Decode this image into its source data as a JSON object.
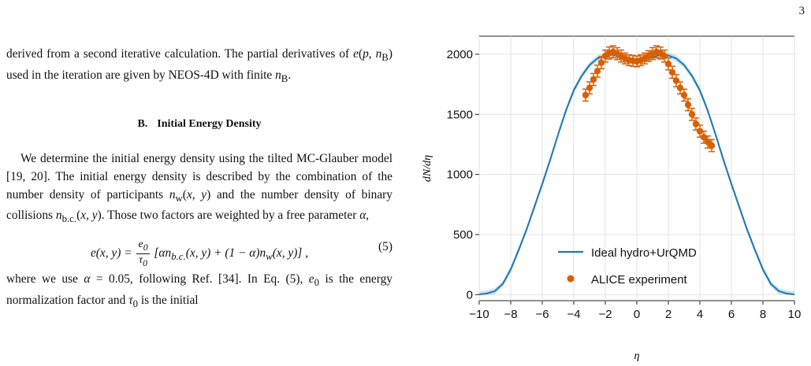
{
  "page_number": "3",
  "left_column": {
    "para1": "derived from a second iterative calculation. The partial derivatives of e(p, nB) used in the iteration are given by NEOS-4D with finite nB.",
    "section_number": "B.",
    "section_title": "Initial Energy Density",
    "para2": "We determine the initial energy density using the tilted MC-Glauber model [19, 20]. The initial energy density is described by the combination of the number density of participants nw(x, y) and the number density of binary collisions nb.c.(x, y). Those two factors are weighted by a free parameter α,",
    "equation_text": "e(x, y) = e0/τ0 [α nb.c.(x, y) + (1 − α) nw(x, y)],",
    "equation_number": "(5)",
    "para3": "where we use α = 0.05, following Ref. [34]. In Eq. (5), e0 is the energy normalization factor and τ0 is the initial"
  },
  "chart_data": {
    "type": "line",
    "xlabel": "η",
    "ylabel": "dN/dη",
    "xlim": [
      -10,
      10
    ],
    "ylim": [
      -50,
      2150
    ],
    "xticks": [
      -10,
      -8,
      -6,
      -4,
      -2,
      0,
      2,
      4,
      6,
      8,
      10
    ],
    "xtick_labels": [
      "−10",
      "−8",
      "−6",
      "−4",
      "−2",
      "0",
      "2",
      "4",
      "6",
      "8",
      "10"
    ],
    "yticks": [
      0,
      500,
      1000,
      1500,
      2000
    ],
    "ytick_labels": [
      "0",
      "500",
      "1000",
      "1500",
      "2000"
    ],
    "grid": true,
    "legend_position": "bottom-center",
    "series": [
      {
        "name": "Ideal hydro+UrQMD",
        "kind": "line",
        "color": "#1f77b4",
        "x": [
          -10,
          -9.5,
          -9,
          -8.5,
          -8,
          -7.5,
          -7,
          -6.5,
          -6,
          -5.5,
          -5,
          -4.5,
          -4,
          -3.5,
          -3,
          -2.5,
          -2,
          -1.5,
          -1,
          -0.5,
          0,
          0.5,
          1,
          1.5,
          2,
          2.5,
          3,
          3.5,
          4,
          4.5,
          5,
          5.5,
          6,
          6.5,
          7,
          7.5,
          8,
          8.5,
          9,
          9.5,
          10
        ],
        "y": [
          2,
          10,
          30,
          90,
          210,
          370,
          540,
          730,
          920,
          1120,
          1330,
          1530,
          1700,
          1820,
          1910,
          1965,
          1990,
          1995,
          1975,
          1955,
          1945,
          1955,
          1975,
          1995,
          1990,
          1965,
          1910,
          1820,
          1700,
          1530,
          1330,
          1120,
          920,
          730,
          540,
          370,
          210,
          90,
          30,
          10,
          2
        ]
      },
      {
        "name": "ALICE experiment",
        "kind": "scatter",
        "color": "#d95f02",
        "x": [
          -3.25,
          -3.0,
          -2.75,
          -2.5,
          -2.25,
          -2.0,
          -1.75,
          -1.5,
          -1.25,
          -1.0,
          -0.75,
          -0.5,
          -0.25,
          0.0,
          0.25,
          0.5,
          0.75,
          1.0,
          1.25,
          1.5,
          1.75,
          2.0,
          2.25,
          2.5,
          2.75,
          3.0,
          3.25,
          3.5,
          3.75,
          4.0,
          4.25,
          4.5,
          4.75
        ],
        "y": [
          1660,
          1720,
          1790,
          1860,
          1930,
          1985,
          2010,
          2020,
          2005,
          1985,
          1965,
          1950,
          1945,
          1940,
          1950,
          1965,
          1985,
          2005,
          2020,
          2010,
          1985,
          1920,
          1850,
          1780,
          1720,
          1660,
          1580,
          1500,
          1420,
          1360,
          1310,
          1270,
          1240
        ],
        "yerr": [
          50,
          50,
          50,
          50,
          50,
          50,
          50,
          50,
          50,
          50,
          45,
          45,
          45,
          45,
          45,
          45,
          45,
          50,
          50,
          50,
          50,
          50,
          50,
          50,
          50,
          50,
          50,
          50,
          50,
          50,
          50,
          50,
          50
        ]
      }
    ]
  }
}
